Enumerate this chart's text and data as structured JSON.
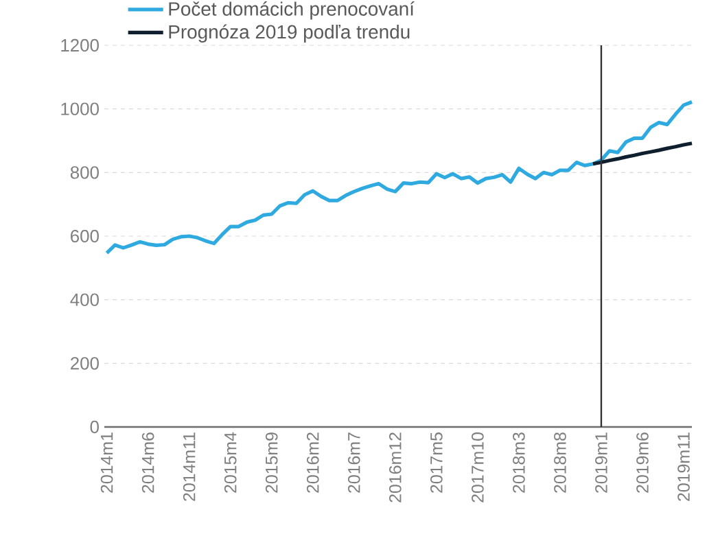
{
  "chart_data": {
    "type": "line",
    "categories": [
      "2014m1",
      null,
      null,
      null,
      null,
      "2014m6",
      null,
      null,
      null,
      null,
      "2014m11",
      null,
      null,
      null,
      null,
      "2015m4",
      null,
      null,
      null,
      null,
      "2015m9",
      null,
      null,
      null,
      null,
      "2016m2",
      null,
      null,
      null,
      null,
      "2016m7",
      null,
      null,
      null,
      null,
      "2016m12",
      null,
      null,
      null,
      null,
      "2017m5",
      null,
      null,
      null,
      null,
      "2017m10",
      null,
      null,
      null,
      null,
      "2018m3",
      null,
      null,
      null,
      null,
      "2018m8",
      null,
      null,
      null,
      null,
      "2019m1",
      null,
      null,
      null,
      null,
      "2019m6",
      null,
      null,
      null,
      null,
      "2019m11",
      null
    ],
    "series": [
      {
        "name": "Počet domácich prenocovaní",
        "color": "#2eaae1",
        "values": [
          547,
          572,
          563,
          572,
          582,
          575,
          571,
          573,
          590,
          598,
          600,
          595,
          585,
          577,
          605,
          630,
          630,
          644,
          650,
          666,
          669,
          695,
          705,
          703,
          730,
          742,
          725,
          712,
          712,
          728,
          740,
          750,
          758,
          765,
          748,
          740,
          767,
          765,
          770,
          768,
          796,
          784,
          796,
          781,
          786,
          767,
          781,
          785,
          793,
          770,
          813,
          795,
          781,
          800,
          793,
          807,
          807,
          832,
          822,
          827,
          839,
          868,
          863,
          896,
          908,
          908,
          942,
          957,
          951,
          983,
          1012,
          1022
        ]
      },
      {
        "name": "Prognóza 2019 podľa trendu",
        "color": "#0f1f2e",
        "values": [
          null,
          null,
          null,
          null,
          null,
          null,
          null,
          null,
          null,
          null,
          null,
          null,
          null,
          null,
          null,
          null,
          null,
          null,
          null,
          null,
          null,
          null,
          null,
          null,
          null,
          null,
          null,
          null,
          null,
          null,
          null,
          null,
          null,
          null,
          null,
          null,
          null,
          null,
          null,
          null,
          null,
          null,
          null,
          null,
          null,
          null,
          null,
          null,
          null,
          null,
          null,
          null,
          null,
          null,
          null,
          null,
          null,
          null,
          null,
          827,
          832,
          838,
          843,
          849,
          854,
          860,
          865,
          870,
          876,
          881,
          887,
          892
        ]
      }
    ],
    "ylim": [
      0,
      1200
    ],
    "yticks": [
      0,
      200,
      400,
      600,
      800,
      1000,
      1200
    ],
    "grid": "y",
    "legend": "top left",
    "marker": "none",
    "line_style": "solid",
    "ref_lines": [
      {
        "axis": "x",
        "value": "2019m1",
        "color": "#333333"
      }
    ]
  }
}
